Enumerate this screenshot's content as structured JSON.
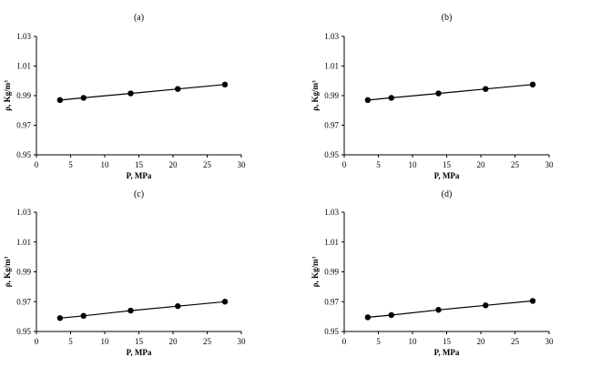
{
  "chart_data": [
    {
      "type": "line",
      "title": "(a)",
      "xlabel": "P, MPa",
      "ylabel": "ρ, Kg/m³",
      "xlim": [
        0,
        30
      ],
      "ylim": [
        0.95,
        1.03
      ],
      "xticks": [
        "0",
        "5",
        "10",
        "15",
        "20",
        "25",
        "30"
      ],
      "yticks": [
        "0.95",
        "0.97",
        "0.99",
        "1.01",
        "1.03"
      ],
      "grid": false,
      "series": [
        {
          "x": [
            3.45,
            6.9,
            13.8,
            20.7,
            27.6
          ],
          "y": [
            0.987,
            0.9885,
            0.9915,
            0.9945,
            0.9975
          ]
        }
      ]
    },
    {
      "type": "line",
      "title": "(b)",
      "xlabel": "P, MPa",
      "ylabel": "ρ, Kg/m³",
      "xlim": [
        0,
        30
      ],
      "ylim": [
        0.95,
        1.03
      ],
      "xticks": [
        "0",
        "5",
        "10",
        "15",
        "20",
        "25",
        "30"
      ],
      "yticks": [
        "0.95",
        "0.97",
        "0.99",
        "1.01",
        "1.03"
      ],
      "grid": false,
      "series": [
        {
          "x": [
            3.45,
            6.9,
            13.8,
            20.7,
            27.6
          ],
          "y": [
            0.987,
            0.9885,
            0.9915,
            0.9945,
            0.9975
          ]
        }
      ]
    },
    {
      "type": "line",
      "title": "(c)",
      "xlabel": "P, MPa",
      "ylabel": "ρ, Kg/m³",
      "xlim": [
        0,
        30
      ],
      "ylim": [
        0.95,
        1.03
      ],
      "xticks": [
        "0",
        "5",
        "10",
        "15",
        "20",
        "25",
        "30"
      ],
      "yticks": [
        "0.95",
        "0.97",
        "0.99",
        "1.01",
        "1.03"
      ],
      "grid": false,
      "series": [
        {
          "x": [
            3.45,
            6.9,
            13.8,
            20.7,
            27.6
          ],
          "y": [
            0.959,
            0.9605,
            0.964,
            0.967,
            0.97
          ]
        }
      ]
    },
    {
      "type": "line",
      "title": "(d)",
      "xlabel": "P, MPa",
      "ylabel": "ρ, Kg/m³",
      "xlim": [
        0,
        30
      ],
      "ylim": [
        0.95,
        1.03
      ],
      "xticks": [
        "0",
        "5",
        "10",
        "15",
        "20",
        "25",
        "30"
      ],
      "yticks": [
        "0.95",
        "0.97",
        "0.99",
        "1.01",
        "1.03"
      ],
      "grid": false,
      "series": [
        {
          "x": [
            3.45,
            6.9,
            13.8,
            20.7,
            27.6
          ],
          "y": [
            0.9595,
            0.961,
            0.9645,
            0.9675,
            0.9705
          ]
        }
      ]
    }
  ]
}
